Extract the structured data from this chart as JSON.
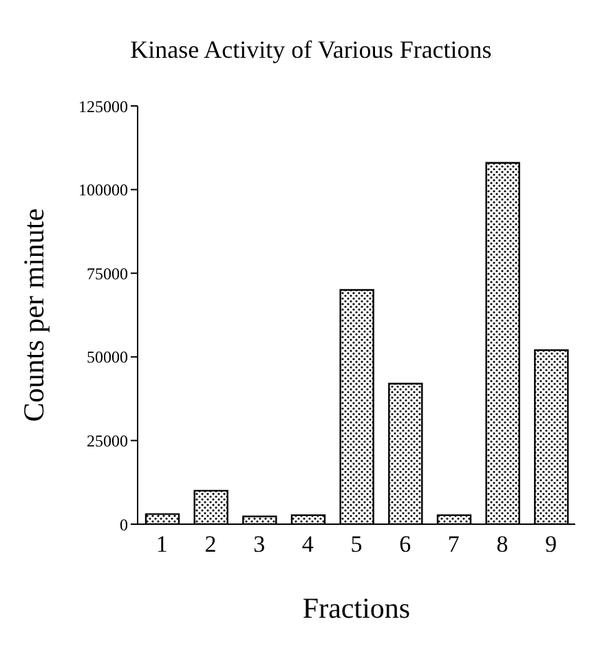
{
  "chart_data": {
    "type": "bar",
    "title": "Kinase Activity of Various Fractions",
    "xlabel": "Fractions",
    "ylabel": "Counts per minute",
    "categories": [
      "1",
      "2",
      "3",
      "4",
      "5",
      "6",
      "7",
      "8",
      "9"
    ],
    "values": [
      3000,
      10000,
      2300,
      2700,
      70000,
      42000,
      2700,
      108000,
      52000
    ],
    "color": "#000000",
    "ylim": [
      0,
      125000
    ],
    "yticks": [
      0,
      25000,
      50000,
      75000,
      100000,
      125000
    ],
    "grid": false,
    "legend": false
  }
}
